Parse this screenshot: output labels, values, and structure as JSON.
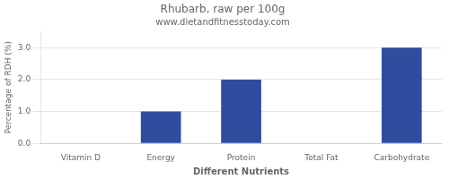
{
  "chart_data": {
    "type": "bar",
    "title": "Rhubarb, raw per 100g",
    "subtitle": "www.dietandfitnesstoday.com",
    "xlabel": "Different Nutrients",
    "ylabel": "Percentage of RDH (%)",
    "categories": [
      "Vitamin D",
      "Energy",
      "Protein",
      "Total Fat",
      "Carbohydrate"
    ],
    "values": [
      0.0,
      1.0,
      2.0,
      0.0,
      3.0
    ],
    "color": "#2e4d9e",
    "ylim": [
      0,
      3.5
    ],
    "yticks": [
      {
        "value": 0,
        "label": "0.0"
      },
      {
        "value": 1,
        "label": "1.0"
      },
      {
        "value": 2,
        "label": "2.0"
      },
      {
        "value": 3,
        "label": "3.0"
      }
    ],
    "grid": true
  }
}
